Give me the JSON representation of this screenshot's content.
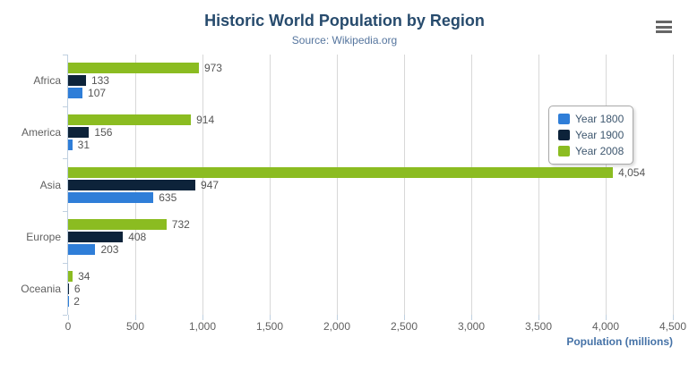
{
  "header": {
    "title": "Historic World Population by Region",
    "subtitle": "Source: Wikipedia.org"
  },
  "menu": {
    "context_button": "hamburger-icon"
  },
  "colors": {
    "title": "#274b6d",
    "subtitle": "#55759e",
    "axis_title": "#4572A7",
    "axis_line": "#C0D0E0",
    "gridline": "#d8d8d8",
    "labels": "#606060",
    "data_labels": "#555555",
    "menu_icon": "#666666"
  },
  "chart_data": {
    "type": "bar",
    "orientation": "horizontal",
    "title": "Historic World Population by Region",
    "subtitle": "Source: Wikipedia.org",
    "categories": [
      "Africa",
      "America",
      "Asia",
      "Europe",
      "Oceania"
    ],
    "series": [
      {
        "name": "Year 1800",
        "color": "#2f7ed8",
        "values": [
          107,
          31,
          635,
          203,
          2
        ]
      },
      {
        "name": "Year 1900",
        "color": "#0d233a",
        "values": [
          133,
          156,
          947,
          408,
          6
        ]
      },
      {
        "name": "Year 2008",
        "color": "#8bbc21",
        "values": [
          973,
          914,
          4054,
          732,
          34
        ]
      }
    ],
    "bar_display_order_top_to_bottom": [
      "Year 2008",
      "Year 1900",
      "Year 1800"
    ],
    "data_labels": true,
    "data_label_format": "thousands-comma",
    "xlabel": "Population (millions)",
    "xlabel_align": "high",
    "xlim": [
      0,
      4500
    ],
    "x_tick_interval": 500,
    "x_tick_labels": [
      "0",
      "500",
      "1,000",
      "1,500",
      "2,000",
      "2,500",
      "3,000",
      "3,500",
      "4,000",
      "4,500"
    ],
    "grid": true,
    "legend": {
      "position": "right",
      "layout": "vertical",
      "entries": [
        "Year 1800",
        "Year 1900",
        "Year 2008"
      ]
    }
  }
}
